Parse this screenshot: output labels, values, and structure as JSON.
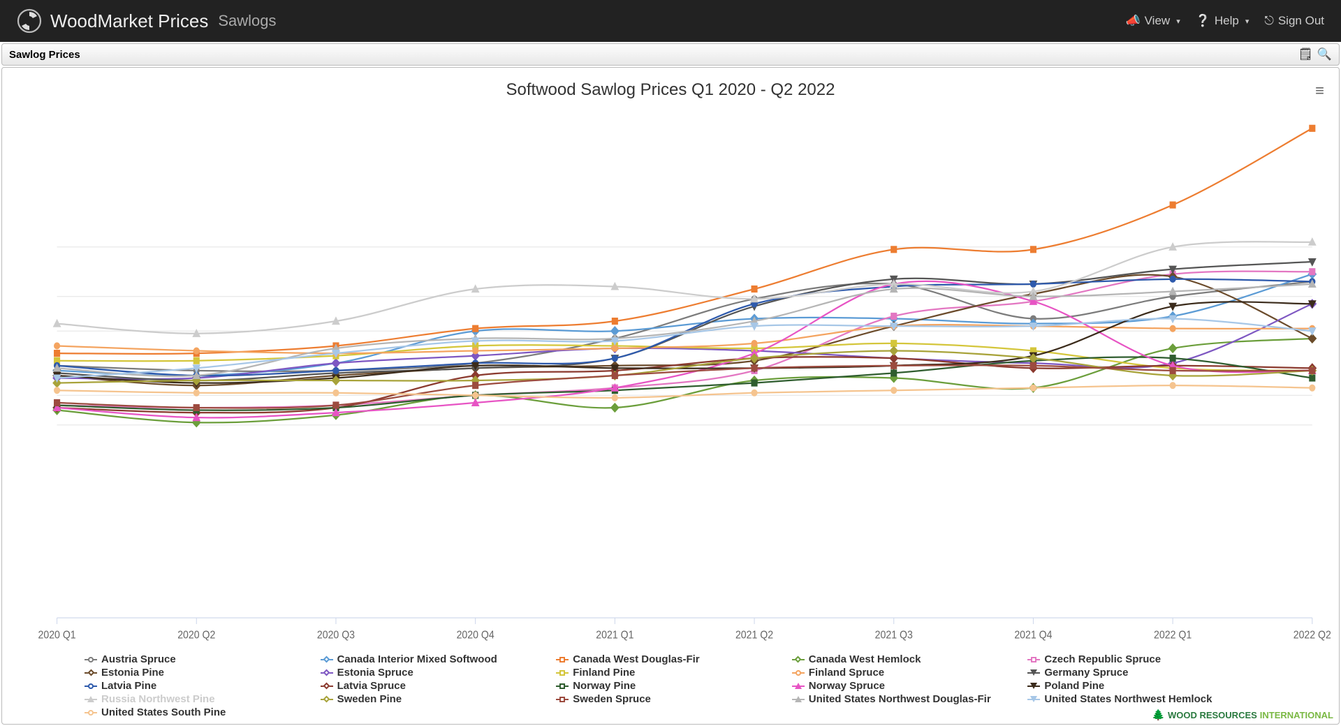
{
  "topbar": {
    "brand": "WoodMarket Prices",
    "subtitle": "Sawlogs",
    "view": "View",
    "help": "Help",
    "signout": "Sign Out"
  },
  "subheader": {
    "title": "Sawlog Prices"
  },
  "chart": {
    "type": "line",
    "title": "Softwood Sawlog Prices Q1 2020 - Q2 2022",
    "x_categories": [
      "2020 Q1",
      "2020 Q2",
      "2020 Q3",
      "2020 Q4",
      "2021 Q1",
      "2021 Q2",
      "2021 Q3",
      "2021 Q4",
      "2022 Q1",
      "2022 Q2"
    ],
    "ylim": [
      0,
      200
    ],
    "gridlines_y": [
      150,
      130,
      116,
      90,
      78
    ],
    "grid_color": "#e6e6e6",
    "background": "#ffffff",
    "title_fontsize": 24,
    "xlabel_fontsize": 14,
    "legend_fontsize": 15,
    "line_width": 2,
    "marker_size": 8,
    "series": [
      {
        "name": "Austria Spruce",
        "color": "#7c7c7c",
        "marker": "circle",
        "values": [
          102,
          100,
          100,
          103,
          113,
          129,
          135,
          121,
          130,
          136
        ]
      },
      {
        "name": "Canada Interior Mixed Softwood",
        "color": "#5b9bd5",
        "marker": "diamond",
        "values": [
          100,
          98,
          103,
          116,
          116,
          121,
          121,
          119,
          122,
          139
        ]
      },
      {
        "name": "Canada West Douglas-Fir",
        "color": "#ed7d31",
        "marker": "square",
        "values": [
          107,
          107,
          110,
          117,
          120,
          133,
          149,
          149,
          167,
          198
        ]
      },
      {
        "name": "Canada West Hemlock",
        "color": "#6b9e3b",
        "marker": "diamond",
        "values": [
          84,
          79,
          82,
          90,
          85,
          96,
          97,
          93,
          109,
          113
        ]
      },
      {
        "name": "Czech Republic Spruce",
        "color": "#e377c2",
        "marker": "square",
        "values": [
          86,
          85,
          86,
          90,
          93,
          100,
          122,
          128,
          139,
          140
        ]
      },
      {
        "name": "Estonia Pine",
        "color": "#6b4b2b",
        "marker": "diamond",
        "values": [
          98,
          94,
          98,
          101,
          102,
          104,
          118,
          131,
          138,
          113
        ]
      },
      {
        "name": "Estonia Spruce",
        "color": "#7e57c2",
        "marker": "diamond",
        "values": [
          97,
          97,
          103,
          106,
          109,
          108,
          105,
          103,
          103,
          127
        ]
      },
      {
        "name": "Finland Pine",
        "color": "#d4c63b",
        "marker": "square",
        "values": [
          104,
          104,
          106,
          110,
          110,
          109,
          111,
          108,
          101,
          100
        ]
      },
      {
        "name": "Finland Spruce",
        "color": "#f4a460",
        "marker": "circle",
        "values": [
          110,
          108,
          107,
          108,
          109,
          111,
          118,
          118,
          117,
          117
        ]
      },
      {
        "name": "Germany Spruce",
        "color": "#555555",
        "marker": "triangle-down",
        "values": [
          99,
          96,
          99,
          101,
          105,
          126,
          137,
          135,
          141,
          144
        ]
      },
      {
        "name": "Latvia Pine",
        "color": "#2e5aac",
        "marker": "circle",
        "values": [
          102,
          98,
          100,
          103,
          105,
          127,
          134,
          135,
          137,
          136
        ]
      },
      {
        "name": "Latvia Spruce",
        "color": "#8b3a2f",
        "marker": "diamond",
        "values": [
          85,
          83,
          85,
          98,
          100,
          105,
          105,
          101,
          102,
          101
        ]
      },
      {
        "name": "Norway Pine",
        "color": "#2f5d2f",
        "marker": "square",
        "values": [
          86,
          84,
          85,
          90,
          92,
          95,
          99,
          104,
          105,
          97
        ]
      },
      {
        "name": "Norway Spruce",
        "color": "#e754c4",
        "marker": "triangle",
        "values": [
          85,
          81,
          83,
          87,
          93,
          107,
          135,
          128,
          102,
          100
        ]
      },
      {
        "name": "Poland Pine",
        "color": "#3b2b1b",
        "marker": "triangle-down",
        "values": [
          98,
          95,
          97,
          102,
          101,
          101,
          102,
          106,
          126,
          127
        ]
      },
      {
        "name": "Russia Northwest Pine",
        "color": "#cccccc",
        "marker": "triangle",
        "values": [
          119,
          115,
          120,
          133,
          134,
          129,
          135,
          132,
          150,
          152
        ],
        "dim": true
      },
      {
        "name": "Sweden Pine",
        "color": "#a8a33a",
        "marker": "diamond",
        "values": [
          95,
          96,
          96,
          96,
          98,
          105,
          108,
          105,
          98,
          100
        ]
      },
      {
        "name": "Sweden Spruce",
        "color": "#9c4b3f",
        "marker": "square",
        "values": [
          87,
          85,
          86,
          94,
          98,
          101,
          102,
          102,
          100,
          100
        ]
      },
      {
        "name": "United States Northwest Douglas-Fir",
        "color": "#b5b5b5",
        "marker": "triangle",
        "values": [
          101,
          98,
          109,
          113,
          113,
          120,
          133,
          130,
          132,
          135
        ]
      },
      {
        "name": "United States Northwest Hemlock",
        "color": "#a7c7e7",
        "marker": "triangle-down",
        "values": [
          97,
          101,
          107,
          112,
          112,
          118,
          118,
          118,
          121,
          116
        ]
      },
      {
        "name": "United States South Pine",
        "color": "#f5c48f",
        "marker": "circle",
        "values": [
          92,
          91,
          91,
          90,
          89,
          91,
          92,
          93,
          94,
          93
        ]
      }
    ]
  },
  "footer": {
    "word1": "WOOD RESOURCES",
    "word2": "INTERNATIONAL"
  }
}
